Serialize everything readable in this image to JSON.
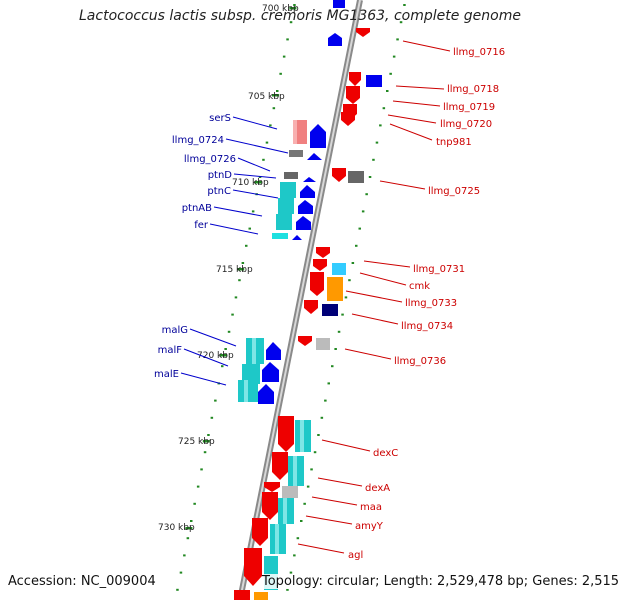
{
  "header": {
    "title": "Lactococcus lactis subsp. cremoris MG1363, complete genome"
  },
  "footer": {
    "accession": "Accession: NC_009004",
    "summary": "Topology: circular; Length: 2,529,478 bp; Genes: 2,515"
  },
  "colors": {
    "forward_gene": "#0000ee",
    "reverse_gene": "#ee0000",
    "cds_cyan": "#1ec8c8",
    "label_left": "#000099",
    "label_right": "#cc0000",
    "tick": "#228822",
    "backbone": "#8a8a8a"
  },
  "ruler": {
    "labels": [
      "700 kbp",
      "705 kbp",
      "710 kbp",
      "715 kbp",
      "720 kbp",
      "725 kbp",
      "730 kbp"
    ]
  },
  "left_labels": [
    "serS",
    "llmg_0724",
    "llmg_0726",
    "ptnD",
    "ptnC",
    "ptnAB",
    "fer",
    "malG",
    "malF",
    "malE"
  ],
  "right_labels": [
    "llmg_0716",
    "llmg_0718",
    "llmg_0719",
    "llmg_0720",
    "tnp981",
    "llmg_0725",
    "llmg_0731",
    "cmk",
    "llmg_0733",
    "llmg_0734",
    "llmg_0736",
    "dexC",
    "dexA",
    "maa",
    "amyY",
    "agl"
  ]
}
